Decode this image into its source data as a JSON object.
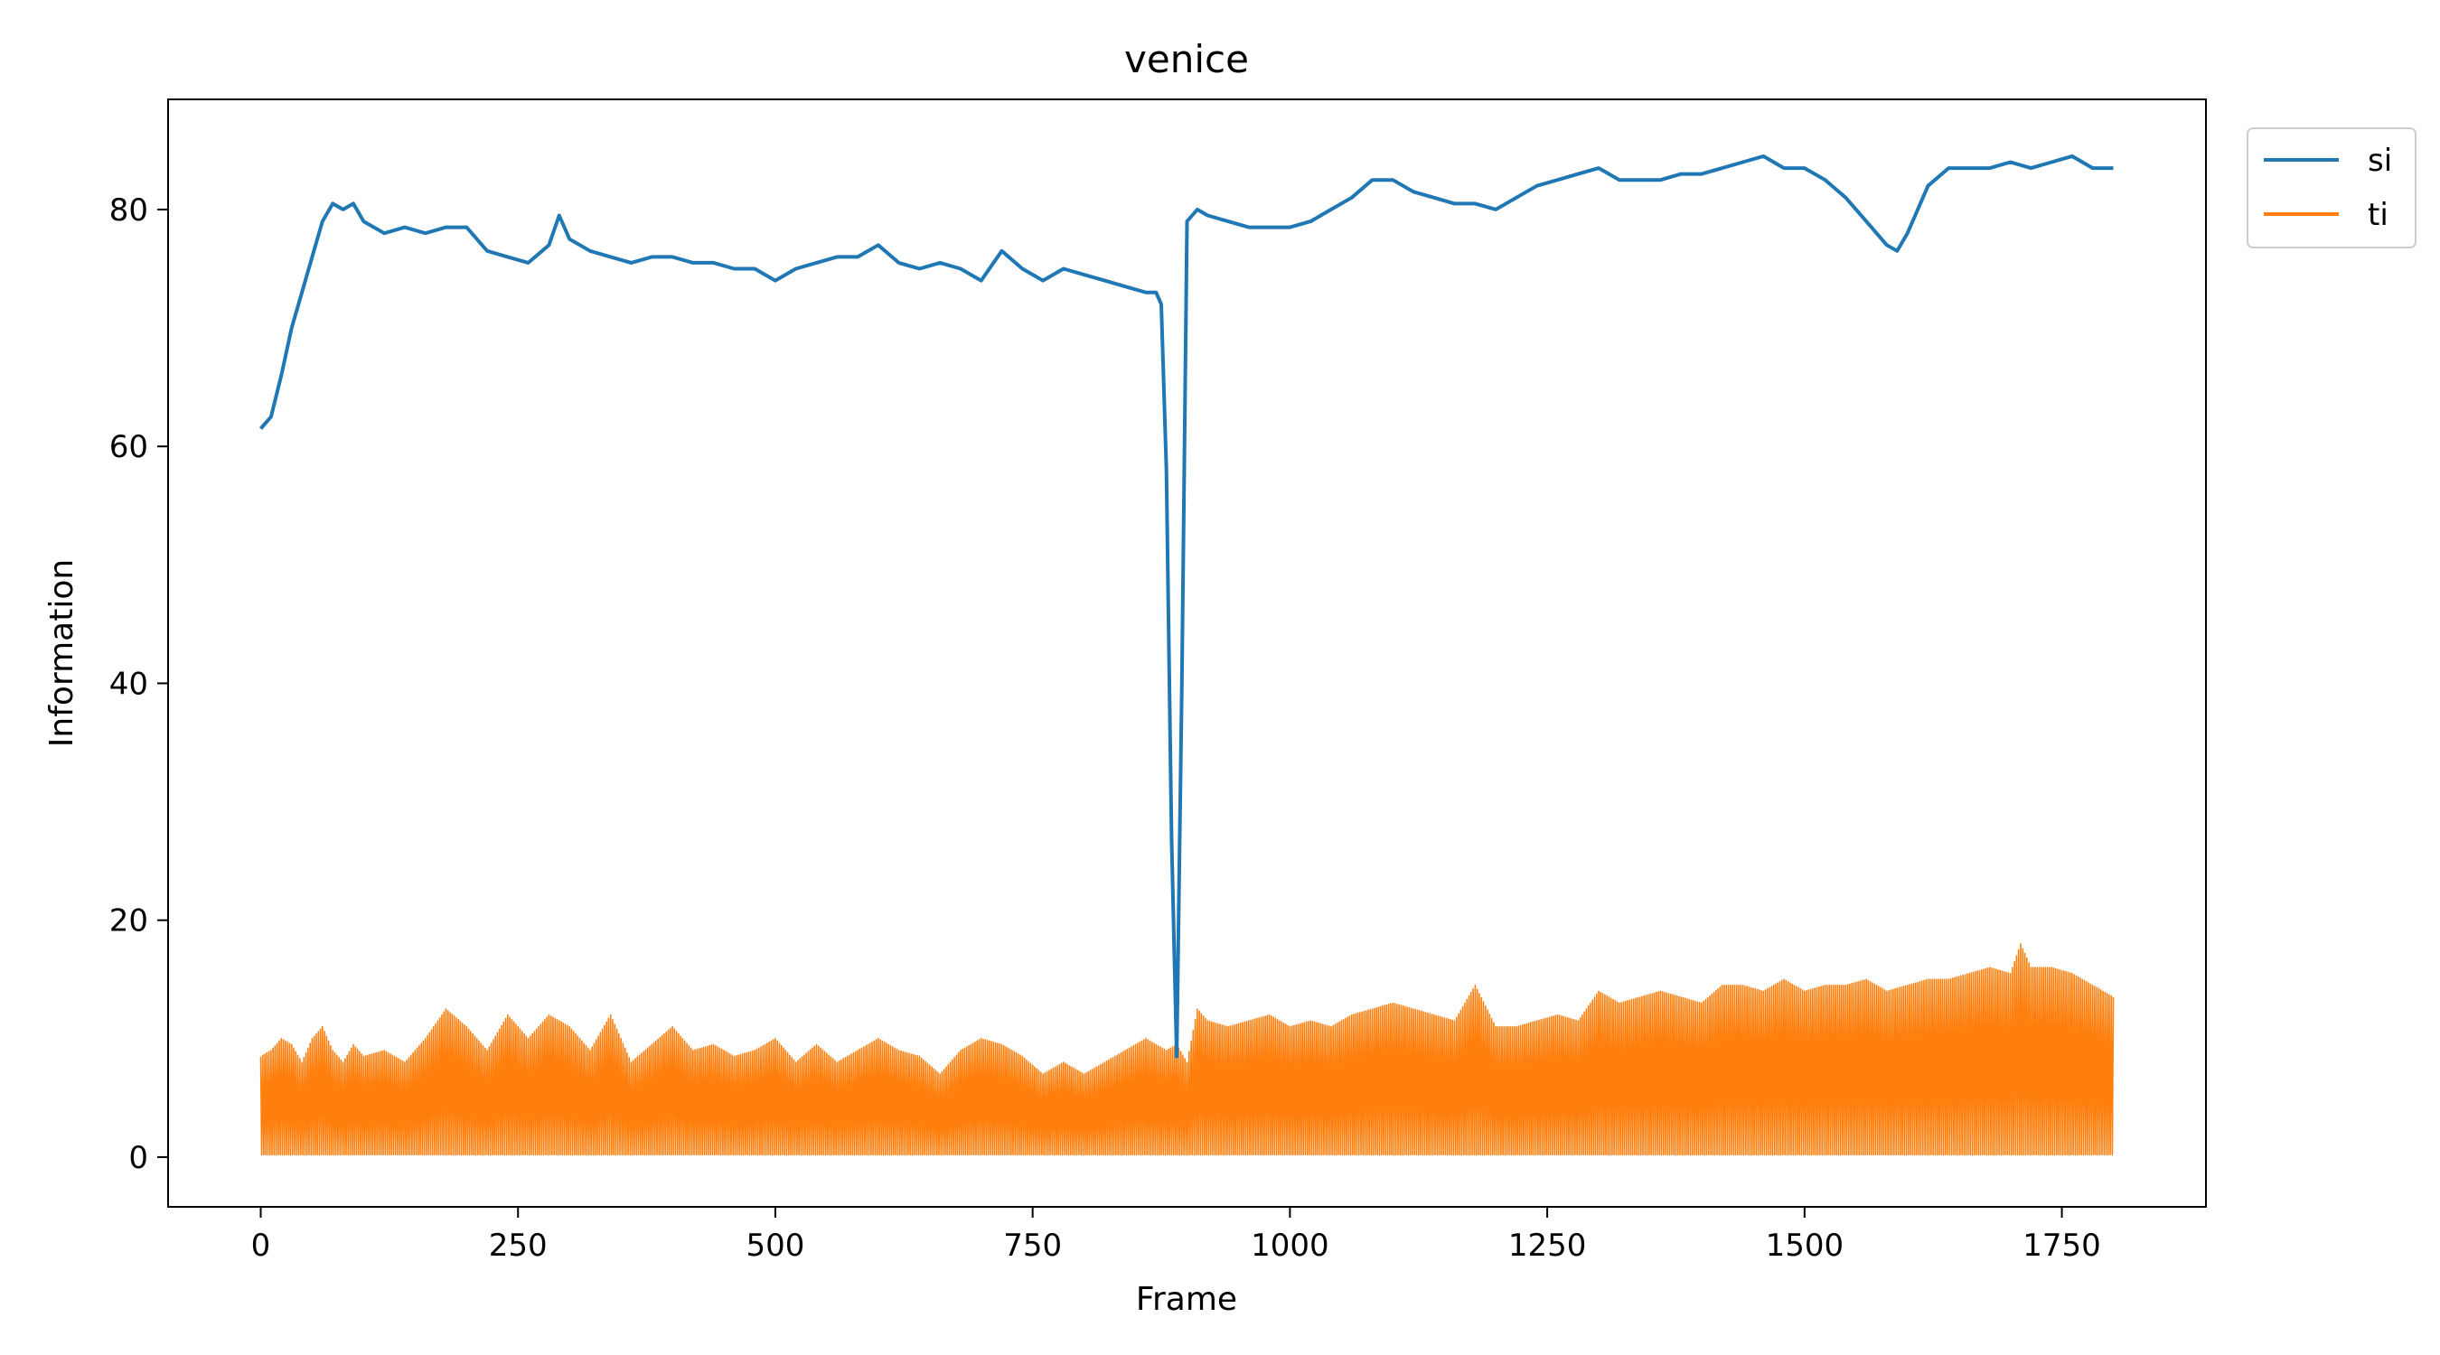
{
  "chart_data": {
    "type": "line",
    "title": "venice",
    "xlabel": "Frame",
    "ylabel": "Information",
    "xlim": [
      -90,
      1890
    ],
    "ylim": [
      -4.2,
      89.3
    ],
    "xticks": [
      0,
      250,
      500,
      750,
      1000,
      1250,
      1500,
      1750
    ],
    "xtick_labels": [
      "0",
      "250",
      "500",
      "750",
      "1000",
      "1250",
      "1500",
      "1750"
    ],
    "yticks": [
      0,
      20,
      40,
      60,
      80
    ],
    "ytick_labels": [
      "0",
      "20",
      "40",
      "60",
      "80"
    ],
    "grid": false,
    "legend_position": "outside-top-right",
    "series": [
      {
        "name": "si",
        "color": "#1f77b4",
        "x": [
          0,
          10,
          20,
          30,
          40,
          50,
          60,
          70,
          80,
          90,
          100,
          120,
          140,
          160,
          180,
          200,
          220,
          240,
          260,
          280,
          290,
          300,
          320,
          340,
          360,
          380,
          400,
          420,
          440,
          460,
          480,
          500,
          520,
          540,
          560,
          580,
          600,
          620,
          640,
          660,
          680,
          700,
          720,
          740,
          760,
          780,
          800,
          820,
          840,
          860,
          870,
          875,
          880,
          885,
          890,
          895,
          900,
          905,
          910,
          920,
          940,
          960,
          980,
          1000,
          1020,
          1040,
          1060,
          1080,
          1100,
          1120,
          1140,
          1160,
          1180,
          1200,
          1220,
          1240,
          1260,
          1280,
          1300,
          1320,
          1340,
          1360,
          1380,
          1400,
          1420,
          1440,
          1460,
          1480,
          1500,
          1520,
          1540,
          1560,
          1580,
          1590,
          1600,
          1620,
          1640,
          1660,
          1680,
          1700,
          1720,
          1740,
          1760,
          1780,
          1800
        ],
        "values": [
          61.5,
          62.5,
          66,
          70,
          73,
          76,
          79,
          80.5,
          80,
          80.5,
          79,
          78,
          78.5,
          78,
          78.5,
          78.5,
          76.5,
          76,
          75.5,
          77,
          79.5,
          77.5,
          76.5,
          76,
          75.5,
          76,
          76,
          75.5,
          75.5,
          75,
          75,
          74,
          75,
          75.5,
          76,
          76,
          77,
          75.5,
          75,
          75.5,
          75,
          74,
          76.5,
          75,
          74,
          75,
          74.5,
          74,
          73.5,
          73,
          73,
          72,
          58,
          27,
          8.5,
          40,
          79,
          79.5,
          80,
          79.5,
          79,
          78.5,
          78.5,
          78.5,
          79,
          80,
          81,
          82.5,
          82.5,
          81.5,
          81,
          80.5,
          80.5,
          80,
          81,
          82,
          82.5,
          83,
          83.5,
          82.5,
          82.5,
          82.5,
          83,
          83,
          83.5,
          84,
          84.5,
          83.5,
          83.5,
          82.5,
          81,
          79,
          77,
          76.5,
          78,
          82,
          83.5,
          83.5,
          83.5,
          84,
          83.5,
          84,
          84.5,
          83.5,
          83.5
        ]
      },
      {
        "name": "ti",
        "color": "#ff7f0e",
        "x": [
          0,
          10,
          20,
          30,
          40,
          50,
          60,
          70,
          80,
          90,
          100,
          120,
          140,
          160,
          180,
          200,
          220,
          240,
          260,
          280,
          300,
          320,
          340,
          360,
          380,
          400,
          420,
          440,
          460,
          480,
          500,
          520,
          540,
          560,
          580,
          600,
          620,
          640,
          660,
          680,
          700,
          720,
          740,
          760,
          780,
          800,
          820,
          840,
          860,
          880,
          890,
          900,
          910,
          920,
          940,
          960,
          980,
          1000,
          1020,
          1040,
          1060,
          1080,
          1100,
          1120,
          1140,
          1160,
          1180,
          1200,
          1220,
          1240,
          1260,
          1280,
          1300,
          1320,
          1340,
          1360,
          1380,
          1400,
          1420,
          1440,
          1460,
          1480,
          1500,
          1520,
          1540,
          1560,
          1580,
          1600,
          1620,
          1640,
          1660,
          1680,
          1700,
          1710,
          1720,
          1740,
          1760,
          1780,
          1800
        ],
        "values": [
          8.5,
          9,
          10,
          9.5,
          8,
          10,
          11,
          9,
          8,
          9.5,
          8.5,
          9,
          8,
          10,
          12.5,
          11,
          9,
          12,
          10,
          12,
          11,
          9,
          12,
          8,
          9.5,
          11,
          9,
          9.5,
          8.5,
          9,
          10,
          8,
          9.5,
          8,
          9,
          10,
          9,
          8.5,
          7,
          9,
          10,
          9.5,
          8.5,
          7,
          8,
          7,
          8,
          9,
          10,
          9,
          9.5,
          8,
          12.5,
          11.5,
          11,
          11.5,
          12,
          11,
          11.5,
          11,
          12,
          12.5,
          13,
          12.5,
          12,
          11.5,
          14.5,
          11,
          11,
          11.5,
          12,
          11.5,
          14,
          13,
          13.5,
          14,
          13.5,
          13,
          14.5,
          14.5,
          14,
          15,
          14,
          14.5,
          14.5,
          15,
          14,
          14.5,
          15,
          15,
          15.5,
          16,
          15.5,
          18,
          16,
          16,
          15.5,
          14.5,
          13.5
        ]
      }
    ]
  }
}
